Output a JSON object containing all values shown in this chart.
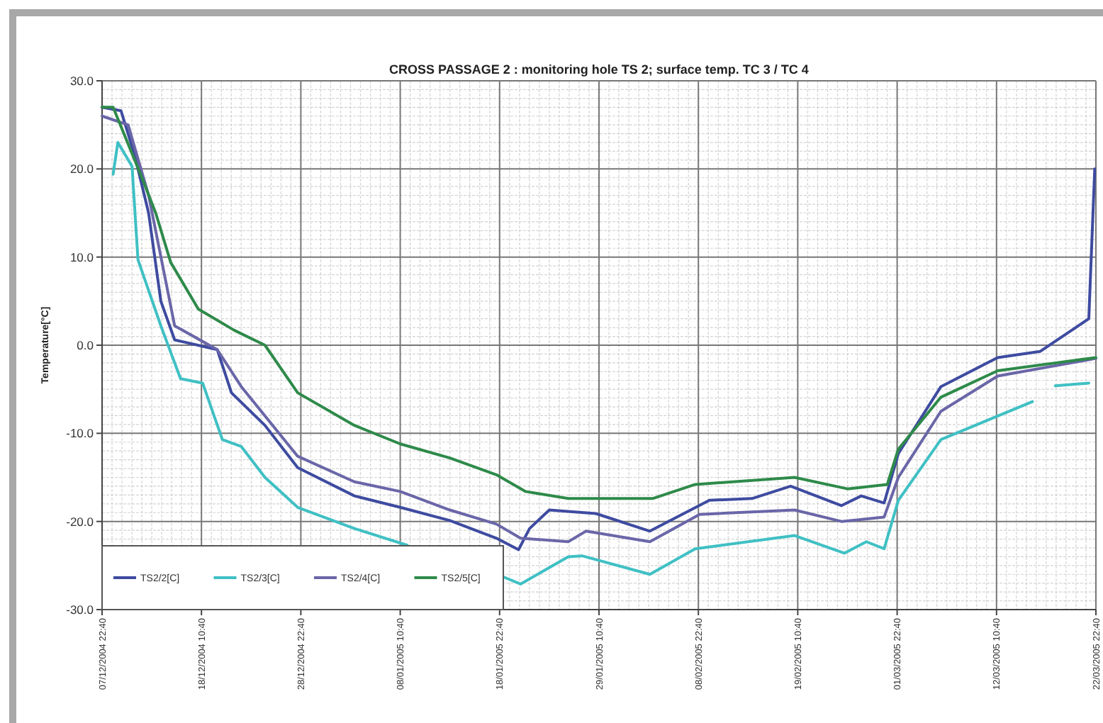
{
  "chart_data": {
    "type": "line",
    "title": "CROSS PASSAGE 2 : monitoring hole TS 2; surface temp. TC 3 / TC 4",
    "ylabel": "Temperature[°C]",
    "xlim": [
      "2004-12-07T22:40",
      "2005-03-22T22:40"
    ],
    "xticks": [
      {
        "value": "2004-12-07T22:40",
        "label": "07/12/2004 22:40"
      },
      {
        "value": "2004-12-18T10:40",
        "label": "18/12/2004 10:40"
      },
      {
        "value": "2004-12-28T22:40",
        "label": "28/12/2004 22:40"
      },
      {
        "value": "2005-01-08T10:40",
        "label": "08/01/2005 10:40"
      },
      {
        "value": "2005-01-18T22:40",
        "label": "18/01/2005 22:40"
      },
      {
        "value": "2005-01-29T10:40",
        "label": "29/01/2005 10:40"
      },
      {
        "value": "2005-02-08T22:40",
        "label": "08/02/2005 22:40"
      },
      {
        "value": "2005-02-19T10:40",
        "label": "19/02/2005 10:40"
      },
      {
        "value": "2005-03-01T22:40",
        "label": "01/03/2005 22:40"
      },
      {
        "value": "2005-03-12T10:40",
        "label": "12/03/2005 10:40"
      },
      {
        "value": "2005-03-22T22:40",
        "label": "22/03/2005 22:40"
      }
    ],
    "ylim": [
      -30,
      30
    ],
    "yticks": [
      {
        "value": -30,
        "label": "-30.0"
      },
      {
        "value": -20,
        "label": "-20.0"
      },
      {
        "value": -10,
        "label": "-10.0"
      },
      {
        "value": 0,
        "label": "0.0"
      },
      {
        "value": 10,
        "label": "10.0"
      },
      {
        "value": 20,
        "label": "20.0"
      },
      {
        "value": 30,
        "label": "30.0"
      }
    ],
    "grid": true,
    "legend": "bottom left",
    "marker": "none",
    "line_style": "solid",
    "series": [
      {
        "name": "TS2/2[C]",
        "color": "#3e4ba0",
        "x": [
          "2004-12-07T22:40",
          "2004-12-09T22:40",
          "2004-12-11T09:40",
          "2004-12-12T20:40",
          "2004-12-14T03:40",
          "2004-12-15T14:40",
          "2004-12-20T02:40",
          "2004-12-21T14:40",
          "2004-12-25T03:40",
          "2004-12-28T14:40",
          "2005-01-03T14:40",
          "2005-01-08T10:40",
          "2005-01-13T16:40",
          "2005-01-18T14:40",
          "2005-01-20T22:40",
          "2005-01-22T02:40",
          "2005-01-24T04:40",
          "2005-01-29T02:40",
          "2005-02-03T19:40",
          "2005-02-10T02:40",
          "2005-02-14T14:40",
          "2005-02-18T16:40",
          "2005-02-24T01:40",
          "2005-02-26T03:40",
          "2005-02-28T13:40",
          "2005-03-02T01:40",
          "2005-03-06T13:40",
          "2005-03-12T13:40",
          "2005-03-17T01:40",
          "2005-03-22T04:40",
          "2005-03-22T19:40"
        ],
        "values": [
          27,
          26.6,
          21.5,
          15,
          5,
          0.6,
          -0.5,
          -5.4,
          -9.1,
          -13.9,
          -17.1,
          -18.4,
          -19.9,
          -21.9,
          -23.2,
          -20.8,
          -18.7,
          -19.1,
          -21.1,
          -17.6,
          -17.4,
          -16,
          -18.2,
          -17.1,
          -17.9,
          -12.3,
          -4.7,
          -1.4,
          -0.7,
          3,
          20
        ]
      },
      {
        "name": "TS2/3[C]",
        "color": "#3fc0c4",
        "x": [
          "2004-12-09T02:40",
          "2004-12-09T14:40",
          "2004-12-11T02:40",
          "2004-12-11T17:40",
          "2004-12-14T03:40",
          "2004-12-16T05:40",
          "2004-12-18T13:40",
          "2004-12-20T15:40",
          "2004-12-22T15:40",
          "2004-12-25T03:40",
          "2004-12-28T14:40",
          "2005-01-03T14:40",
          "2005-01-09T04:40",
          "2005-01-13T16:40",
          "2005-01-19T08:40",
          "2005-01-21T03:40",
          "2005-01-26T04:40",
          "2005-01-27T15:40",
          "2005-02-03T19:40",
          "2005-02-08T14:40",
          "2005-02-19T02:40",
          "2005-02-24T08:40",
          "2005-02-26T16:40",
          "2005-02-28T13:40",
          "2005-03-02T01:40",
          "2005-03-06T13:40",
          "2005-03-16T05:40",
          "2005-03-17T03:40",
          "2005-03-18T15:40",
          "2005-03-22T04:40"
        ],
        "values": [
          19.4,
          23,
          20.3,
          9.7,
          2.2,
          -3.8,
          -4.3,
          -10.7,
          -11.5,
          -15,
          -18.4,
          -20.8,
          -22.7,
          null,
          -26.3,
          -27.1,
          -24,
          -23.9,
          -26,
          -23.1,
          -21.6,
          -23.6,
          -22.3,
          -23.1,
          -17.6,
          -10.7,
          -6.4,
          null,
          -4.6,
          -4.3
        ]
      },
      {
        "name": "TS2/4[C]",
        "color": "#6a66a8",
        "x": [
          "2004-12-07T22:40",
          "2004-12-10T16:40",
          "2004-12-12T20:40",
          "2004-12-15T14:40",
          "2004-12-20T02:40",
          "2004-12-22T15:40",
          "2004-12-28T14:40",
          "2005-01-03T14:40",
          "2005-01-08T10:40",
          "2005-01-13T16:40",
          "2005-01-18T14:40",
          "2005-01-21T03:40",
          "2005-01-26T04:40",
          "2005-01-28T01:40",
          "2005-02-03T19:40",
          "2005-02-09T01:40",
          "2005-02-19T02:40",
          "2005-02-24T01:40",
          "2005-02-28T13:40",
          "2005-03-02T01:40",
          "2005-03-06T13:40",
          "2005-03-12T13:40",
          "2005-03-22T22:40"
        ],
        "values": [
          26,
          25,
          17,
          2.2,
          -0.5,
          -4.7,
          -12.6,
          -15.5,
          -16.6,
          -18.7,
          -20.3,
          -21.9,
          -22.3,
          -21.1,
          -22.3,
          -19.2,
          -18.7,
          -20,
          -19.5,
          -15,
          -7.5,
          -3.5,
          -1.5
        ]
      },
      {
        "name": "TS2/5[C]",
        "color": "#2e8a4a",
        "x": [
          "2004-12-07T22:40",
          "2004-12-09T02:40",
          "2004-12-12T03:40",
          "2004-12-13T14:40",
          "2004-12-15T04:40",
          "2004-12-18T02:40",
          "2004-12-21T21:40",
          "2004-12-25T03:40",
          "2004-12-28T14:40",
          "2005-01-03T14:40",
          "2005-01-08T10:40",
          "2005-01-13T16:40",
          "2005-01-18T14:40",
          "2005-01-21T16:40",
          "2005-01-26T04:40",
          "2005-02-04T02:40",
          "2005-02-08T14:40",
          "2005-02-19T02:40",
          "2005-02-24T16:40",
          "2005-02-28T21:40",
          "2005-03-02T01:40",
          "2005-03-06T13:40",
          "2005-03-12T13:40",
          "2005-03-22T22:40"
        ],
        "values": [
          27,
          27,
          19,
          15,
          9.4,
          4.1,
          1.7,
          0,
          -5.4,
          -9.1,
          -11.2,
          -12.8,
          -14.7,
          -16.6,
          -17.4,
          -17.4,
          -15.8,
          -15,
          -16.3,
          -15.8,
          -11.8,
          -5.9,
          -2.9,
          -1.4
        ]
      }
    ]
  }
}
